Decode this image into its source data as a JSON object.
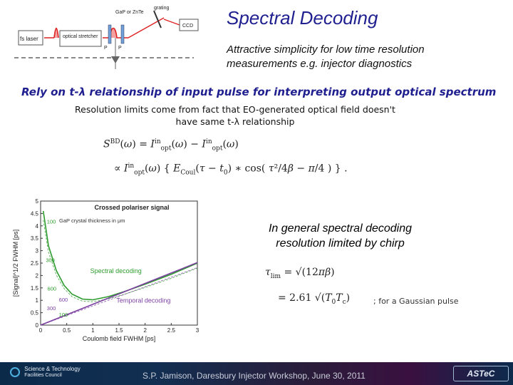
{
  "slide": {
    "title": "Spectral Decoding",
    "subtitle": "Attractive simplicity for low time resolution measurements e.g. injector diagnostics",
    "rely": "Rely on t-λ relationship of input pulse for interpreting output optical spectrum",
    "resolution_line1": "Resolution limits come from fact that EO-generated optical field doesn't",
    "resolution_line2": "have same t-λ relationship",
    "general_line1": "In general spectral decoding",
    "general_line2": "resolution limited by chirp",
    "gaussian_note": "; for a Gaussian pulse",
    "footer": "S.P. Jamison, Daresbury Injector Workshop, June 30, 2011",
    "stfc_line1": "Science & Technology",
    "stfc_line2": "Facilities Council",
    "astec_logo": "ASTeC"
  },
  "diagram": {
    "laser": "fs laser",
    "stretcher": "optical stretcher",
    "crystal": "GaP or ZnTe",
    "grating": "grating",
    "ccd": "CCD",
    "p1": "P",
    "p2": "P"
  },
  "chart_data": {
    "type": "line",
    "title": "Crossed polariser signal",
    "xlabel": "Coulomb field FWHM [ps]",
    "ylabel": "[Signal]^1/2  FWHM [ps]",
    "xlim": [
      0,
      3
    ],
    "ylim": [
      0,
      5
    ],
    "x_ticks": [
      "0",
      "0.5",
      "1",
      "1.5",
      "2",
      "2.5",
      "3"
    ],
    "y_ticks": [
      "0",
      "0.5",
      "1",
      "1.5",
      "2",
      "2.5",
      "3",
      "3.5",
      "4",
      "4.5",
      "5"
    ],
    "crystal_label": "GaP crystal thickness in μm",
    "series": [
      {
        "name": "Spectral decoding",
        "color": "#2e9b2e",
        "x": [
          0.05,
          0.15,
          0.3,
          0.45,
          0.6,
          0.8,
          1.0,
          1.3,
          1.6,
          2.0,
          2.5,
          3.0
        ],
        "y": [
          4.6,
          3.2,
          2.2,
          1.6,
          1.25,
          1.05,
          1.02,
          1.15,
          1.35,
          1.65,
          2.05,
          2.5
        ]
      },
      {
        "name": "Temporal decoding",
        "color": "#7b3fa0",
        "x": [
          0.0,
          0.5,
          1.0,
          1.5,
          2.0,
          2.5,
          3.0
        ],
        "y": [
          0.0,
          0.42,
          0.84,
          1.26,
          1.68,
          2.1,
          2.52
        ]
      }
    ],
    "curve_labels": [
      {
        "text": "100",
        "x": 0.12,
        "y": 4.1,
        "color": "#2e9b2e"
      },
      {
        "text": "300",
        "x": 0.1,
        "y": 2.55,
        "color": "#2e9b2e"
      },
      {
        "text": "600",
        "x": 0.13,
        "y": 1.4,
        "color": "#2e9b2e"
      },
      {
        "text": "600",
        "x": 0.35,
        "y": 0.95,
        "color": "#7b3fa0"
      },
      {
        "text": "300",
        "x": 0.12,
        "y": 0.6,
        "color": "#7b3fa0"
      },
      {
        "text": "100",
        "x": 0.35,
        "y": 0.35,
        "color": "#2e9b2e"
      }
    ]
  }
}
